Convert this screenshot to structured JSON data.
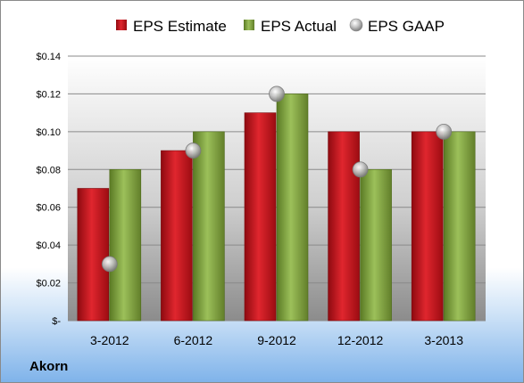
{
  "company": "Akorn",
  "chart_data": {
    "type": "bar",
    "categories": [
      "3-2012",
      "6-2012",
      "9-2012",
      "12-2012",
      "3-2013"
    ],
    "series": [
      {
        "name": "EPS Estimate",
        "kind": "bar",
        "color": "#c0121a",
        "values": [
          0.07,
          0.09,
          0.11,
          0.1,
          0.1
        ]
      },
      {
        "name": "EPS Actual",
        "kind": "bar",
        "color": "#7a9a3c",
        "values": [
          0.08,
          0.1,
          0.12,
          0.08,
          0.1
        ]
      },
      {
        "name": "EPS GAAP",
        "kind": "marker",
        "color": "#a8a8a8",
        "values": [
          0.03,
          0.09,
          0.12,
          0.08,
          0.1
        ]
      }
    ],
    "ylim": [
      0,
      0.14
    ],
    "yticks": [
      0,
      0.02,
      0.04,
      0.06,
      0.08,
      0.1,
      0.12,
      0.14
    ],
    "ytick_labels": [
      "$-",
      "$0.02",
      "$0.04",
      "$0.06",
      "$0.08",
      "$0.10",
      "$0.12",
      "$0.14"
    ],
    "grid": true,
    "legend_position": "top"
  }
}
